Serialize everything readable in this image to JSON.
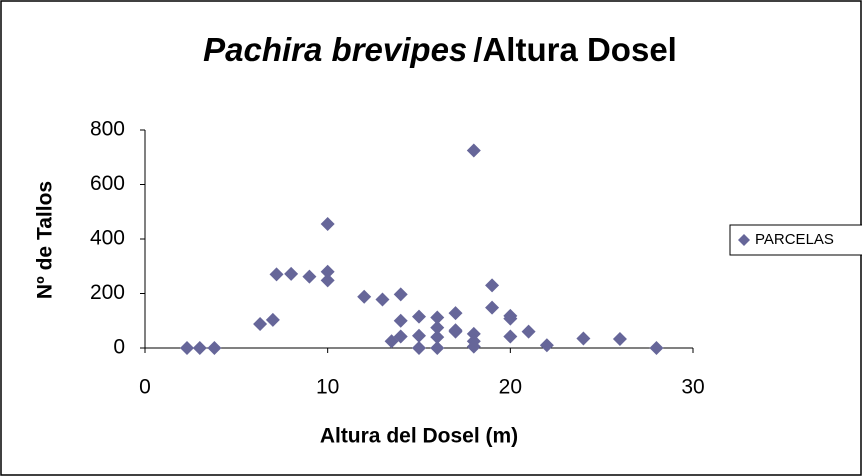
{
  "chart_data": {
    "type": "scatter",
    "title": {
      "italic": "Pachira brevipes",
      "rest": "/Altura Dosel"
    },
    "xlabel": "Altura del Dosel (m)",
    "ylabel": "Nº de Tallos",
    "xlim": [
      0,
      30
    ],
    "xticks": [
      0,
      10,
      20,
      30
    ],
    "ylim": [
      0,
      800
    ],
    "yticks": [
      0,
      200,
      400,
      600,
      800
    ],
    "legend": "right",
    "series": [
      {
        "name": "PARCELAS",
        "color": "#666699",
        "x": [
          2.3,
          3,
          3.8,
          6.3,
          7,
          7.2,
          8,
          9,
          10,
          10,
          10,
          12,
          13,
          13.5,
          14,
          14,
          14,
          15,
          15,
          15,
          16,
          16,
          16,
          16,
          17,
          17,
          17,
          18,
          18,
          18,
          18,
          19,
          19,
          20,
          20,
          20,
          21,
          22,
          24,
          26,
          28
        ],
        "values": [
          0,
          0,
          0,
          88,
          103,
          270,
          272,
          262,
          455,
          280,
          248,
          188,
          178,
          25,
          42,
          100,
          197,
          115,
          45,
          0,
          112,
          75,
          40,
          0,
          128,
          65,
          60,
          725,
          52,
          25,
          5,
          230,
          148,
          118,
          108,
          42,
          60,
          10,
          35,
          33,
          0
        ]
      }
    ]
  }
}
